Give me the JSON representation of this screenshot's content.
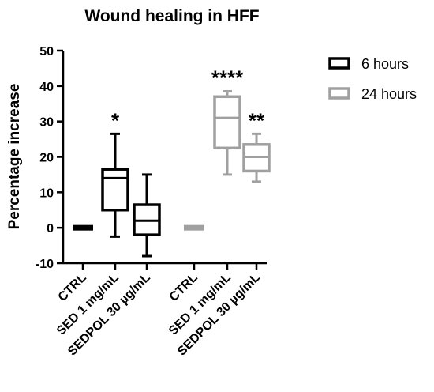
{
  "chart_data": {
    "type": "box",
    "title": "Wound healing in HFF",
    "ylabel": "Percentage increase",
    "xlabel": "",
    "ylim": [
      -10,
      50
    ],
    "yticks": [
      -10,
      0,
      10,
      20,
      30,
      40,
      50
    ],
    "grid": false,
    "legend_position": "top-right",
    "colors": {
      "6 hours": "#000000",
      "24 hours": "#a0a0a0"
    },
    "series": [
      {
        "name": "6 hours",
        "color": "#000000",
        "groups": [
          {
            "category": "CTRL",
            "min": 0,
            "q1": 0,
            "median": 0,
            "q3": 0,
            "max": 0,
            "significance": ""
          },
          {
            "category": "SED 1 mg/mL",
            "min": -2.5,
            "q1": 5,
            "median": 14,
            "q3": 16.5,
            "max": 26.5,
            "significance": "*"
          },
          {
            "category": "SEDPOL 30 µg/mL",
            "min": -8,
            "q1": -2,
            "median": 2,
            "q3": 6.5,
            "max": 15,
            "significance": ""
          }
        ]
      },
      {
        "name": "24 hours",
        "color": "#a0a0a0",
        "groups": [
          {
            "category": "CTRL",
            "min": 0,
            "q1": 0,
            "median": 0,
            "q3": 0,
            "max": 0,
            "significance": ""
          },
          {
            "category": "SED 1 mg/mL",
            "min": 15,
            "q1": 22.5,
            "median": 31,
            "q3": 37,
            "max": 38.5,
            "significance": "****"
          },
          {
            "category": "SEDPOL 30 µg/mL",
            "min": 13,
            "q1": 16,
            "median": 20,
            "q3": 23.5,
            "max": 26.5,
            "significance": "**"
          }
        ]
      }
    ]
  }
}
